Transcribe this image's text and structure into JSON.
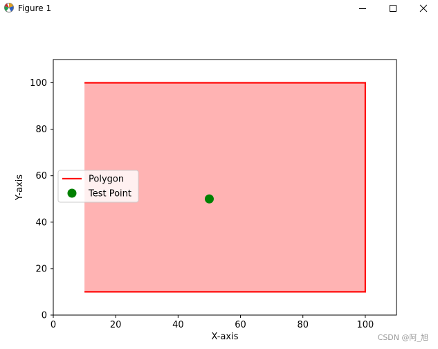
{
  "window": {
    "title": "Figure 1",
    "controls": {
      "minimize_icon": "minimize-icon",
      "maximize_icon": "maximize-icon",
      "close_icon": "close-icon"
    }
  },
  "chart_data": {
    "type": "line",
    "title": "",
    "xlabel": "X-axis",
    "ylabel": "Y-axis",
    "xlim": [
      0,
      110
    ],
    "ylim": [
      0,
      110
    ],
    "xticks": [
      0,
      20,
      40,
      60,
      80,
      100
    ],
    "yticks": [
      0,
      20,
      40,
      60,
      80,
      100
    ],
    "grid": false,
    "legend_placement": "center-left",
    "series": [
      {
        "name": "Polygon",
        "kind": "line",
        "color": "#ff0000",
        "x": [
          10,
          100,
          100,
          10
        ],
        "y": [
          100,
          100,
          10,
          10
        ]
      },
      {
        "name": "Test Point",
        "kind": "scatter",
        "color": "#008000",
        "x": [
          50
        ],
        "y": [
          50
        ]
      }
    ],
    "fill": {
      "color": "#ffb3b3",
      "x": [
        10,
        100,
        100,
        10
      ],
      "y": [
        100,
        100,
        10,
        10
      ]
    }
  },
  "watermark": "CSDN @阿_旭"
}
